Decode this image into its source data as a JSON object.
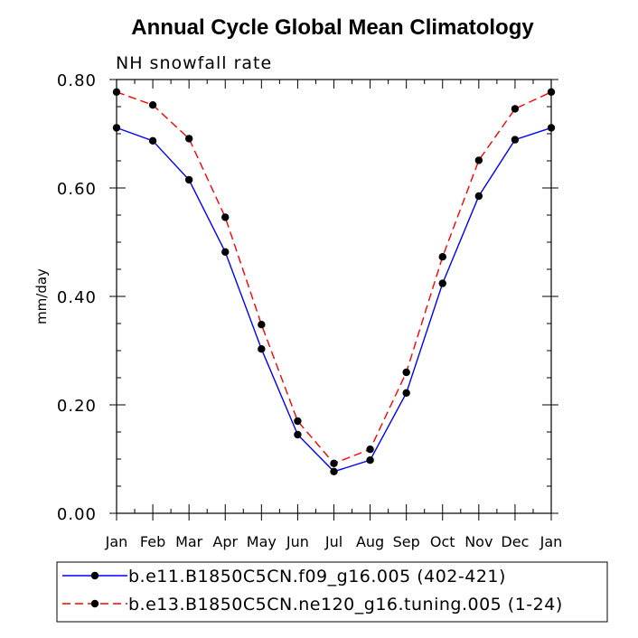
{
  "chart_data": {
    "type": "line",
    "title": "Annual Cycle Global Mean Climatology",
    "subtitle": "NH snowfall rate",
    "xlabel": "",
    "ylabel": "mm/day",
    "ylim": [
      0,
      0.8
    ],
    "yticks": [
      "0.00",
      "0.20",
      "0.40",
      "0.60",
      "0.80"
    ],
    "categories": [
      "Jan",
      "Feb",
      "Mar",
      "Apr",
      "May",
      "Jun",
      "Jul",
      "Aug",
      "Sep",
      "Oct",
      "Nov",
      "Dec",
      "Jan"
    ],
    "series": [
      {
        "name": "b.e11.B1850C5CN.f09_g16.005 (402-421)",
        "color": "#0000ff",
        "dash": "solid",
        "marker": "circle",
        "values": [
          0.711,
          0.687,
          0.615,
          0.482,
          0.303,
          0.145,
          0.077,
          0.098,
          0.222,
          0.424,
          0.585,
          0.689,
          0.711
        ]
      },
      {
        "name": "b.e13.B1850C5CN.ne120_g16.tuning.005 (1-24)",
        "color": "#ff0000",
        "dash": "dashed",
        "marker": "circle",
        "values": [
          0.777,
          0.753,
          0.691,
          0.546,
          0.348,
          0.17,
          0.092,
          0.118,
          0.26,
          0.473,
          0.651,
          0.746,
          0.777
        ]
      }
    ],
    "legend_position": "bottom",
    "grid": false
  }
}
